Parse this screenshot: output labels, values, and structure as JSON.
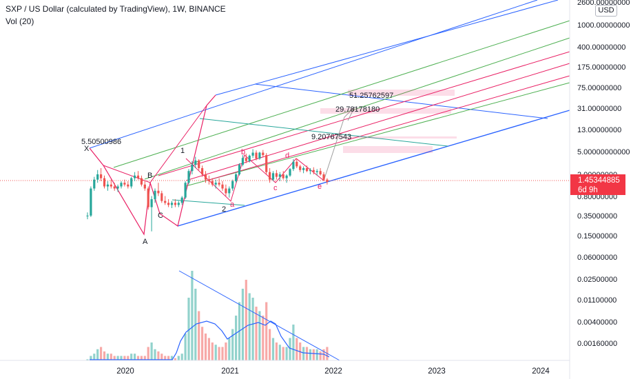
{
  "header": {
    "title": "SXP / US Dollar (calculated by TradingView), 1W, BINANCE",
    "volume_label": "Vol (20)"
  },
  "currency": "USD",
  "last_price": {
    "value": "1.45344885",
    "countdown": "6d 9h"
  },
  "colors": {
    "up": "#26a69a",
    "down": "#ef5350",
    "blue": "#2962ff",
    "pink": "#e91e63",
    "green": "#4caf50",
    "teal": "#26a69a",
    "bg": "#ffffff",
    "axis_text": "#131722"
  },
  "chart_data": {
    "type": "candlestick",
    "y_scale": "log",
    "y_ticks": [
      "2600.00000000",
      "1000.00000000",
      "400.00000000",
      "175.00000000",
      "75.00000000",
      "31.00000000",
      "13.00000000",
      "5.00000000000",
      "2.00000000",
      "0.80000000",
      "0.35000000",
      "0.15000000",
      "0.06000000",
      "0.02500000",
      "0.01100000",
      "0.00400000",
      "0.00160000"
    ],
    "x_ticks": [
      "2020",
      "2021",
      "2022",
      "2023",
      "2024"
    ],
    "wave_labels": [
      "X",
      "A",
      "B",
      "C",
      "1",
      "2",
      "a",
      "b",
      "c",
      "d",
      "e"
    ],
    "price_labels": [
      "5.50500986",
      "51.25762597",
      "29.78178180",
      "9.20767543"
    ],
    "candles": [
      [
        0.35,
        0.4,
        0.3,
        0.35
      ],
      [
        0.35,
        1.2,
        0.33,
        1.1
      ],
      [
        1.1,
        1.8,
        1.0,
        1.6
      ],
      [
        1.6,
        2.4,
        1.4,
        2.0
      ],
      [
        2.0,
        2.6,
        1.5,
        1.7
      ],
      [
        1.7,
        1.9,
        1.1,
        1.2
      ],
      [
        1.2,
        1.5,
        1.0,
        1.3
      ],
      [
        1.3,
        1.6,
        1.1,
        1.2
      ],
      [
        1.2,
        1.4,
        1.0,
        1.1
      ],
      [
        1.1,
        1.3,
        0.95,
        1.2
      ],
      [
        1.2,
        1.5,
        1.1,
        1.4
      ],
      [
        1.4,
        1.6,
        1.2,
        1.3
      ],
      [
        1.3,
        1.5,
        1.1,
        1.2
      ],
      [
        1.2,
        1.8,
        1.1,
        1.7
      ],
      [
        1.7,
        2.2,
        1.5,
        1.9
      ],
      [
        1.9,
        2.3,
        1.6,
        1.7
      ],
      [
        1.7,
        1.9,
        1.2,
        1.3
      ],
      [
        1.3,
        1.5,
        1.0,
        1.1
      ],
      [
        1.1,
        1.2,
        0.45,
        0.5
      ],
      [
        0.5,
        0.8,
        0.18,
        0.7
      ],
      [
        0.7,
        1.1,
        0.6,
        1.0
      ],
      [
        1.0,
        1.4,
        0.8,
        0.9
      ],
      [
        0.9,
        1.0,
        0.6,
        0.65
      ],
      [
        0.65,
        0.8,
        0.55,
        0.6
      ],
      [
        0.6,
        0.7,
        0.5,
        0.55
      ],
      [
        0.55,
        0.65,
        0.48,
        0.6
      ],
      [
        0.6,
        0.7,
        0.5,
        0.55
      ],
      [
        0.55,
        0.65,
        0.5,
        0.6
      ],
      [
        0.6,
        0.8,
        0.55,
        0.75
      ],
      [
        0.75,
        1.5,
        0.7,
        1.4
      ],
      [
        1.4,
        2.5,
        1.3,
        2.3
      ],
      [
        2.3,
        3.5,
        2.0,
        3.0
      ],
      [
        3.0,
        4.2,
        2.6,
        3.6
      ],
      [
        3.6,
        3.8,
        2.4,
        2.6
      ],
      [
        2.6,
        2.9,
        1.8,
        2.0
      ],
      [
        2.0,
        2.3,
        1.4,
        1.6
      ],
      [
        1.6,
        1.9,
        1.3,
        1.5
      ],
      [
        1.5,
        1.7,
        1.2,
        1.3
      ],
      [
        1.3,
        1.6,
        1.1,
        1.4
      ],
      [
        1.4,
        1.7,
        1.2,
        1.3
      ],
      [
        1.3,
        1.5,
        1.0,
        1.1
      ],
      [
        1.1,
        1.3,
        0.8,
        0.9
      ],
      [
        0.9,
        1.2,
        0.75,
        1.1
      ],
      [
        1.1,
        1.6,
        1.0,
        1.5
      ],
      [
        1.5,
        2.2,
        1.4,
        2.0
      ],
      [
        2.0,
        3.2,
        1.9,
        3.0
      ],
      [
        3.0,
        4.5,
        2.8,
        4.0
      ],
      [
        4.0,
        4.8,
        3.2,
        3.5
      ],
      [
        3.5,
        4.6,
        3.3,
        4.4
      ],
      [
        4.4,
        5.8,
        4.0,
        5.0
      ],
      [
        5.0,
        5.5,
        3.6,
        3.9
      ],
      [
        3.9,
        5.2,
        3.7,
        5.0
      ],
      [
        5.0,
        5.6,
        4.2,
        4.5
      ],
      [
        4.5,
        4.9,
        2.0,
        2.2
      ],
      [
        2.2,
        2.6,
        1.4,
        1.6
      ],
      [
        1.6,
        2.3,
        1.5,
        2.1
      ],
      [
        2.1,
        2.4,
        1.6,
        1.8
      ],
      [
        1.8,
        2.2,
        1.5,
        2.0
      ],
      [
        2.0,
        2.3,
        1.6,
        1.7
      ],
      [
        1.7,
        2.0,
        1.4,
        1.9
      ],
      [
        1.9,
        2.6,
        1.8,
        2.5
      ],
      [
        2.5,
        3.8,
        2.3,
        3.4
      ],
      [
        3.4,
        3.9,
        2.6,
        2.8
      ],
      [
        2.8,
        3.0,
        2.2,
        2.4
      ],
      [
        2.4,
        2.8,
        2.1,
        2.6
      ],
      [
        2.6,
        2.9,
        2.2,
        2.3
      ],
      [
        2.3,
        2.6,
        2.0,
        2.4
      ],
      [
        2.4,
        2.7,
        2.0,
        2.2
      ],
      [
        2.2,
        2.5,
        1.9,
        2.3
      ],
      [
        2.3,
        2.6,
        1.9,
        2.0
      ],
      [
        2.0,
        2.2,
        1.5,
        1.6
      ],
      [
        1.6,
        1.7,
        1.3,
        1.45
      ]
    ],
    "volume": [
      0.5,
      2,
      3,
      5,
      6,
      4,
      3,
      3,
      2,
      2,
      2,
      2,
      2,
      3,
      3,
      2,
      2,
      2,
      6,
      8,
      5,
      4,
      3,
      2,
      2,
      2,
      1,
      2,
      3,
      12,
      28,
      40,
      32,
      22,
      15,
      12,
      10,
      8,
      7,
      6,
      6,
      8,
      10,
      14,
      20,
      26,
      32,
      36,
      30,
      28,
      24,
      22,
      20,
      26,
      14,
      10,
      8,
      7,
      6,
      6,
      10,
      16,
      10,
      8,
      6,
      6,
      5,
      5,
      5,
      4,
      5,
      6
    ]
  }
}
